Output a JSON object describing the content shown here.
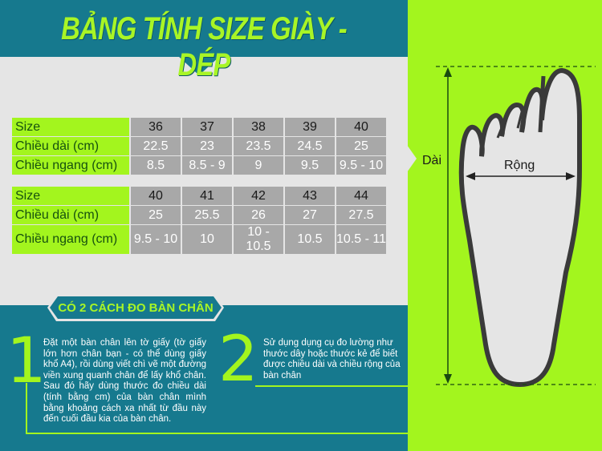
{
  "title": "BẢNG TÍNH SIZE GIÀY -  DÉP",
  "tables": [
    {
      "rows": [
        {
          "label": "Size",
          "values": [
            "36",
            "37",
            "38",
            "39",
            "40"
          ]
        },
        {
          "label": "Chiều dài (cm)",
          "values": [
            "22.5",
            "23",
            "23.5",
            "24.5",
            "25"
          ]
        },
        {
          "label": "Chiều ngang (cm)",
          "values": [
            "8.5",
            "8.5 - 9",
            "9",
            "9.5",
            "9.5 - 10"
          ]
        }
      ]
    },
    {
      "rows": [
        {
          "label": "Size",
          "values": [
            "40",
            "41",
            "42",
            "43",
            "44"
          ]
        },
        {
          "label": "Chiều dài (cm)",
          "values": [
            "25",
            "25.5",
            "26",
            "27",
            "27.5"
          ]
        },
        {
          "label": "Chiều ngang (cm)",
          "values": [
            "9.5 - 10",
            "10",
            "10 - 10.5",
            "10.5",
            "10.5 - 11"
          ]
        }
      ]
    }
  ],
  "methods": {
    "heading": "CÓ 2 CÁCH ĐO BÀN CHÂN",
    "items": [
      {
        "number": "1",
        "text": "Đặt một bàn chân lên tờ giấy (tờ giấy lớn hơn chân bạn - có thể dùng giấy khổ A4), rồi dùng viết chì vẽ một đường viền xung quanh chân để lấy khổ chân. Sau đó hãy dùng thước đo chiều dài (tính bằng cm) của bàn chân mình bằng khoảng cách xa nhất từ đầu này đến cuối đầu kia của bàn chân."
      },
      {
        "number": "2",
        "text": "Sử  dụng dụng cụ đo lường như thước dây hoặc thước kẻ để biết được chiều dài và chiều rộng của bàn chân"
      }
    ]
  },
  "diagram": {
    "length_label": "Dài",
    "width_label": "Rộng"
  },
  "colors": {
    "teal": "#16798e",
    "lime": "#a3f51e",
    "gray": "#e5e5e5",
    "cell": "#a8a8a8"
  }
}
